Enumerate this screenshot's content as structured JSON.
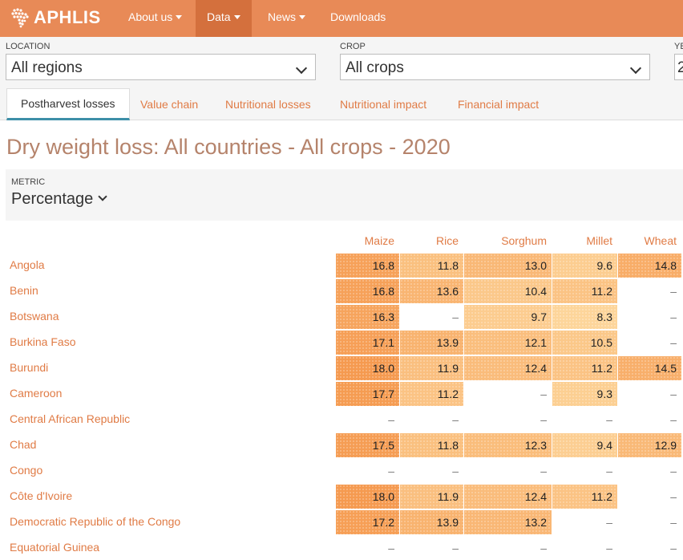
{
  "nav": {
    "brand": "APHLIS",
    "items": [
      {
        "label": "About us",
        "dropdown": true
      },
      {
        "label": "Data",
        "dropdown": true,
        "active": true
      },
      {
        "label": "News",
        "dropdown": true
      },
      {
        "label": "Downloads",
        "dropdown": false
      }
    ]
  },
  "filters": {
    "location": {
      "label": "LOCATION",
      "value": "All regions"
    },
    "crop": {
      "label": "CROP",
      "value": "All crops"
    },
    "year": {
      "label": "YE",
      "value": "2"
    }
  },
  "tabs": [
    {
      "label": "Postharvest losses",
      "active": true
    },
    {
      "label": "Value chain"
    },
    {
      "label": "Nutritional losses"
    },
    {
      "label": "Nutritional impact"
    },
    {
      "label": "Financial impact"
    }
  ],
  "title": "Dry weight loss: All countries - All crops - 2020",
  "metric": {
    "label": "METRIC",
    "value": "Percentage"
  },
  "table": {
    "columns": [
      "Maize",
      "Rice",
      "Sorghum",
      "Millet",
      "Wheat"
    ],
    "empty_symbol": "–",
    "rows": [
      {
        "country": "Angola",
        "values": [
          "16.8",
          "11.8",
          "13.0",
          "9.6",
          "14.8"
        ]
      },
      {
        "country": "Benin",
        "values": [
          "16.8",
          "13.6",
          "10.4",
          "11.2",
          null
        ]
      },
      {
        "country": "Botswana",
        "values": [
          "16.3",
          null,
          "9.7",
          "8.3",
          null
        ]
      },
      {
        "country": "Burkina Faso",
        "values": [
          "17.1",
          "13.9",
          "12.1",
          "10.5",
          null
        ]
      },
      {
        "country": "Burundi",
        "values": [
          "18.0",
          "11.9",
          "12.4",
          "11.2",
          "14.5"
        ]
      },
      {
        "country": "Cameroon",
        "values": [
          "17.7",
          "11.2",
          null,
          "9.3",
          null
        ]
      },
      {
        "country": "Central African Republic",
        "values": [
          null,
          null,
          null,
          null,
          null
        ]
      },
      {
        "country": "Chad",
        "values": [
          "17.5",
          "11.8",
          "12.3",
          "9.4",
          "12.9"
        ]
      },
      {
        "country": "Congo",
        "values": [
          null,
          null,
          null,
          null,
          null
        ]
      },
      {
        "country": "Côte d'Ivoire",
        "values": [
          "18.0",
          "11.9",
          "12.4",
          "11.2",
          null
        ]
      },
      {
        "country": "Democratic Republic of the Congo",
        "values": [
          "17.2",
          "13.9",
          "13.2",
          null,
          null
        ]
      },
      {
        "country": "Equatorial Guinea",
        "values": [
          null,
          null,
          null,
          null,
          null
        ]
      }
    ]
  },
  "colors": {
    "nav_bg": "#e88a57",
    "nav_active": "#d4703d",
    "accent_text": "#e07b45",
    "title_text": "#b5836b",
    "tab_indicator": "#3d8fa8",
    "heat_low": "#fdd59a",
    "heat_high": "#f59a50"
  }
}
